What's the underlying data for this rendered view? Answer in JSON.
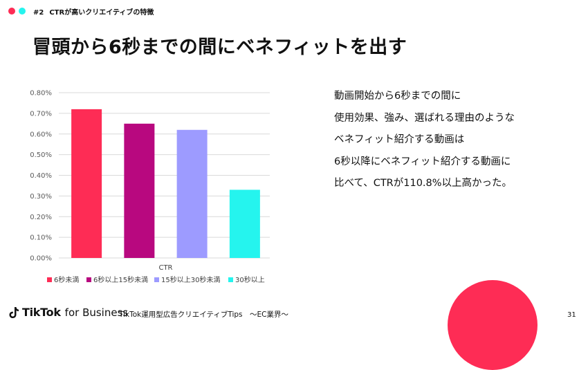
{
  "header": {
    "section_num": "#2",
    "section_title": "CTRが高いクリエイティブの特徴"
  },
  "title": "冒頭から6秒までの間にベネフィットを出す",
  "chart_data": {
    "type": "bar",
    "categories": [
      "CTR"
    ],
    "series": [
      {
        "name": "6秒未満",
        "values": [
          0.72
        ],
        "color": "#fe2c55"
      },
      {
        "name": "6秒以上15秒未満",
        "values": [
          0.65
        ],
        "color": "#b8087f"
      },
      {
        "name": "15秒以上30秒未満",
        "values": [
          0.62
        ],
        "color": "#9d9bff"
      },
      {
        "name": "30秒以上",
        "values": [
          0.33
        ],
        "color": "#25f4ee"
      }
    ],
    "ylim": [
      0,
      0.8
    ],
    "yticks": [
      0,
      0.1,
      0.2,
      0.3,
      0.4,
      0.5,
      0.6,
      0.7,
      0.8
    ],
    "ytick_labels": [
      "0.00%",
      "0.10%",
      "0.20%",
      "0.30%",
      "0.40%",
      "0.50%",
      "0.60%",
      "0.70%",
      "0.80%"
    ],
    "xlabel": "CTR",
    "legend": "bottom",
    "grid": true
  },
  "description": [
    "動画開始から6秒までの間に",
    "使用効果、強み、選ばれる理由のような",
    "ベネフィット紹介する動画は",
    "6秒以降にベネフィット紹介する動画に",
    "比べて、CTRが110.8%以上高かった。"
  ],
  "footer": {
    "brand": "TikTok",
    "brand_sub": "for Business",
    "text": "TikTok運用型広告クリエイティブTips　～EC業界～",
    "page_number": "31"
  },
  "colors": {
    "accent_red": "#fe2c55",
    "accent_cyan": "#25f4ee"
  }
}
